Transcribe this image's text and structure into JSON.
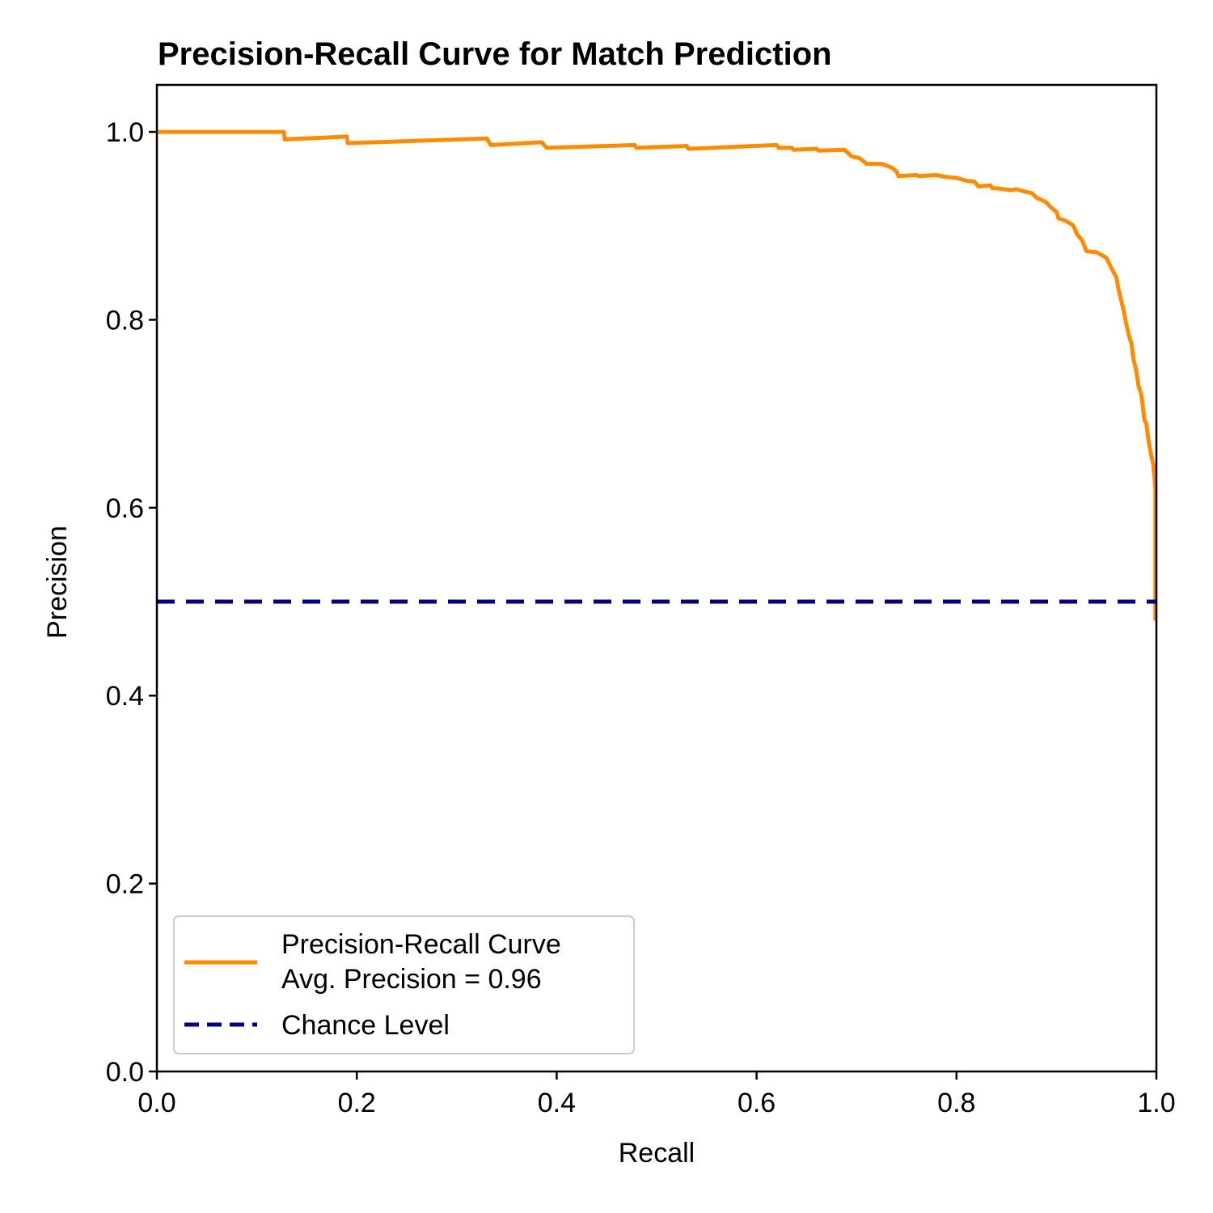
{
  "chart_data": {
    "type": "line",
    "title": "Precision-Recall Curve for Match Prediction",
    "xlabel": "Recall",
    "ylabel": "Precision",
    "xlim": [
      0.0,
      1.0
    ],
    "ylim": [
      0.0,
      1.05
    ],
    "x_ticks": [
      "0.0",
      "0.2",
      "0.4",
      "0.6",
      "0.8",
      "1.0"
    ],
    "y_ticks": [
      "0.0",
      "0.2",
      "0.4",
      "0.6",
      "0.8",
      "1.0"
    ],
    "grid": false,
    "legend_position": "lower-left",
    "series": [
      {
        "name": "Precision-Recall Curve\nAvg. Precision = 0.96",
        "legend_lines": [
          "Precision-Recall Curve",
          "Avg. Precision = 0.96"
        ],
        "color": "#ff8c00",
        "style": "solid",
        "x": [
          0.0,
          0.127,
          0.128,
          0.19,
          0.191,
          0.33,
          0.334,
          0.385,
          0.39,
          0.478,
          0.48,
          0.53,
          0.532,
          0.62,
          0.622,
          0.635,
          0.637,
          0.66,
          0.662,
          0.688,
          0.695,
          0.703,
          0.71,
          0.725,
          0.735,
          0.74,
          0.742,
          0.76,
          0.762,
          0.78,
          0.79,
          0.8,
          0.81,
          0.818,
          0.822,
          0.834,
          0.836,
          0.84,
          0.855,
          0.86,
          0.87,
          0.875,
          0.88,
          0.89,
          0.894,
          0.9,
          0.902,
          0.91,
          0.916,
          0.918,
          0.92,
          0.926,
          0.93,
          0.94,
          0.945,
          0.95,
          0.955,
          0.96,
          0.962,
          0.965,
          0.968,
          0.97,
          0.972,
          0.975,
          0.977,
          0.98,
          0.982,
          0.985,
          0.988,
          0.99,
          0.992,
          0.995,
          0.997,
          0.999,
          0.999
        ],
        "y": [
          1.0,
          1.0,
          0.992,
          0.995,
          0.988,
          0.993,
          0.986,
          0.989,
          0.983,
          0.986,
          0.983,
          0.985,
          0.982,
          0.986,
          0.983,
          0.983,
          0.981,
          0.982,
          0.98,
          0.981,
          0.974,
          0.972,
          0.966,
          0.966,
          0.962,
          0.958,
          0.953,
          0.954,
          0.953,
          0.954,
          0.952,
          0.951,
          0.948,
          0.947,
          0.942,
          0.943,
          0.94,
          0.94,
          0.938,
          0.939,
          0.936,
          0.935,
          0.93,
          0.925,
          0.92,
          0.915,
          0.908,
          0.905,
          0.901,
          0.898,
          0.892,
          0.884,
          0.873,
          0.872,
          0.869,
          0.866,
          0.855,
          0.845,
          0.833,
          0.82,
          0.806,
          0.795,
          0.785,
          0.775,
          0.758,
          0.745,
          0.73,
          0.72,
          0.693,
          0.69,
          0.672,
          0.655,
          0.645,
          0.62,
          0.48
        ]
      },
      {
        "name": "Chance Level",
        "color": "#000080",
        "style": "dashed",
        "x": [
          0.0,
          1.0
        ],
        "y": [
          0.5,
          0.5
        ]
      }
    ]
  }
}
